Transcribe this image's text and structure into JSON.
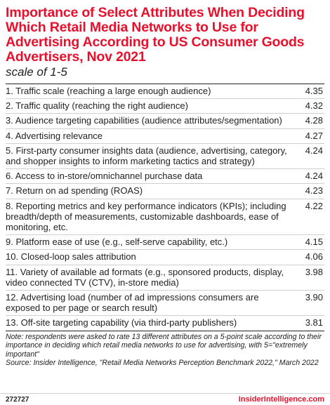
{
  "title": "Importance of Select Attributes When Deciding Which Retail Media Networks to Use for Advertising According to US Consumer Goods Advertisers, Nov 2021",
  "subtitle": "scale of 1-5",
  "chart_data": {
    "type": "table",
    "title": "Importance of Select Attributes When Deciding Which Retail Media Networks to Use for Advertising According to US Consumer Goods Advertisers, Nov 2021",
    "subtitle": "scale of 1-5",
    "categories": [
      "1. Traffic scale (reaching a large enough audience)",
      "2. Traffic quality (reaching the right audience)",
      "3. Audience targeting capabilities (audience attributes/segmentation)",
      "4. Advertising relevance",
      "5. First-party consumer insights data (audience,  advertising, category, and shopper insights to inform marketing tactics and strategy)",
      "6. Access to in-store/omnichannel purchase data",
      "7. Return on ad spending (ROAS)",
      "8. Reporting metrics and key performance indicators (KPIs); including breadth/depth of measurements, customizable dashboards, ease of monitoring, etc.",
      "9. Platform ease of use (e.g., self-serve capability, etc.)",
      "10. Closed-loop sales attribution",
      "11. Variety of available ad formats (e.g., sponsored products, display, video connected TV (CTV), in-store media)",
      "12. Advertising load (number of ad impressions consumers are exposed to per page or search result)",
      "13. Off-site targeting capability (via third-party publishers)"
    ],
    "values": [
      "4.35",
      "4.32",
      "4.28",
      "4.27",
      "4.24",
      "4.24",
      "4.23",
      "4.22",
      "4.15",
      "4.06",
      "3.98",
      "3.90",
      "3.81"
    ]
  },
  "note": "Note: respondents were asked to rate 13 different attributes on a 5-point scale according to their importance in deciding which retail media networks to use for advertising, with 5=\"extremely important\"",
  "source": "Source: Insider Intelligence, \"Retail Media Networks Perception Benchmark 2022,\" March 2022",
  "footer": {
    "chart_id": "272727",
    "brand": "InsiderIntelligence.com"
  },
  "colors": {
    "accent": "#e8112d"
  }
}
